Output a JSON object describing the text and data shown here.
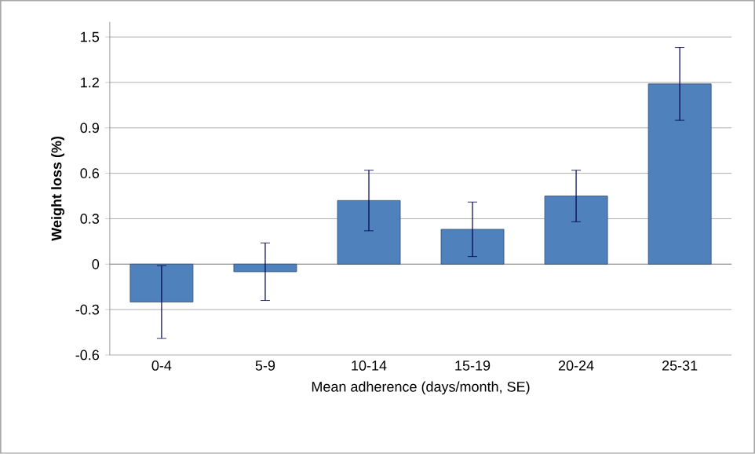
{
  "chart_data": {
    "type": "bar",
    "xlabel": "Mean adherence (days/month, SE)",
    "ylabel": "Weight loss (%)",
    "categories": [
      "0-4",
      "5-9",
      "10-14",
      "15-19",
      "20-24",
      "25-31"
    ],
    "values": [
      -0.25,
      -0.05,
      0.42,
      0.23,
      0.45,
      1.19
    ],
    "errors": [
      0.24,
      0.19,
      0.2,
      0.18,
      0.17,
      0.24
    ],
    "color": "#4f81bd",
    "ylim": [
      -0.6,
      1.6
    ],
    "yticks": [
      -0.6,
      -0.3,
      0,
      0.3,
      0.6,
      0.9,
      1.2,
      1.5
    ],
    "grid": "y"
  }
}
